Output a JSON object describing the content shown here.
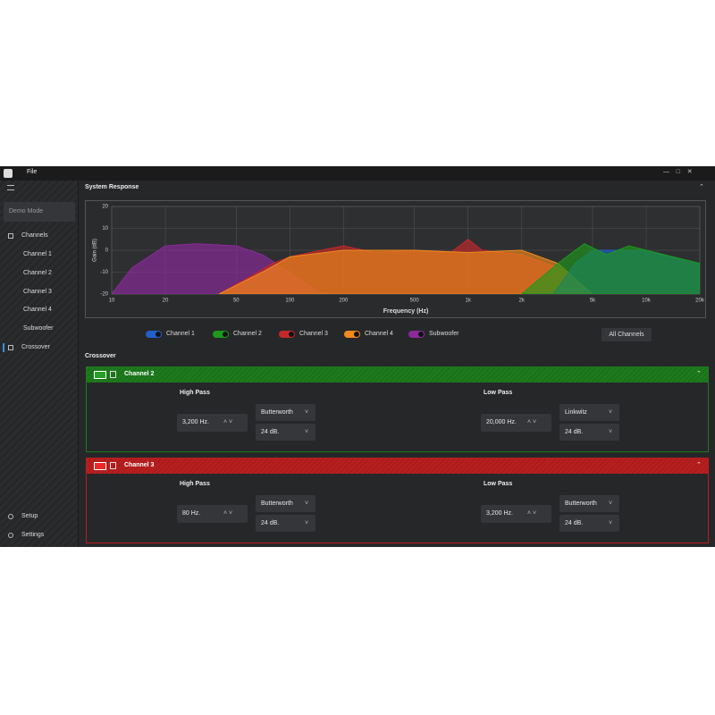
{
  "menu": [
    "File"
  ],
  "sidebar": {
    "mode": "Demo Mode",
    "nav": [
      "Channels",
      "Channel 1",
      "Channel 2",
      "Channel 3",
      "Channel 4",
      "Subwoofer",
      "Crossover"
    ],
    "bottom": [
      "Setup",
      "Settings"
    ]
  },
  "response": {
    "title": "System Response",
    "all_button": "All Channels"
  },
  "chart_data": {
    "type": "area",
    "xlabel": "Frequency (Hz)",
    "ylabel": "Gain (dB)",
    "xscale": "log",
    "grid": true,
    "xlim": [
      10,
      20000
    ],
    "ylim": [
      -20,
      20
    ],
    "xticks": [
      10,
      20,
      50,
      100,
      200,
      500,
      {
        "value": 1000,
        "label": "1k"
      },
      {
        "value": 2000,
        "label": "2k"
      },
      {
        "value": 5000,
        "label": "5k"
      },
      {
        "value": 10000,
        "label": "10k"
      },
      {
        "value": 20000,
        "label": "20k"
      }
    ],
    "yticks": [
      20,
      10,
      0,
      -10,
      -20
    ],
    "series": [
      {
        "name": "Channel 1",
        "color": "#2060c8",
        "x": [
          3000,
          4000,
          5000,
          7000,
          10000,
          12000,
          20000
        ],
        "values": [
          -20,
          -6,
          0,
          0,
          0,
          -2,
          -6
        ]
      },
      {
        "name": "Channel 2",
        "color": "#1c9a1c",
        "x": [
          2000,
          3200,
          4000,
          4500,
          6000,
          8000,
          10000,
          20000
        ],
        "values": [
          -20,
          -6,
          0,
          3,
          -2,
          2,
          0,
          -6
        ]
      },
      {
        "name": "Channel 3",
        "color": "#c4282a",
        "x": [
          40,
          60,
          80,
          100,
          150,
          200,
          300,
          500,
          800,
          1000,
          1200,
          2000,
          3200,
          5000
        ],
        "values": [
          -20,
          -12,
          -6,
          -3,
          0,
          2,
          -1,
          0,
          -1,
          5,
          0,
          -2,
          -8,
          -20
        ]
      },
      {
        "name": "Channel 4",
        "color": "#f08a1c",
        "x": [
          40,
          70,
          100,
          200,
          500,
          1000,
          2000,
          3200,
          5000
        ],
        "values": [
          -20,
          -10,
          -3,
          0,
          0,
          -1,
          0,
          -6,
          -20
        ]
      },
      {
        "name": "Subwoofer",
        "color": "#8c2a9c",
        "x": [
          10,
          13,
          20,
          30,
          50,
          70,
          100,
          150
        ],
        "values": [
          -20,
          -8,
          2,
          3,
          2,
          -2,
          -10,
          -20
        ]
      }
    ]
  },
  "crossover": {
    "title": "Crossover",
    "panels": [
      {
        "name": "Channel 2",
        "color": "#1d7a1d",
        "high_pass": {
          "label": "High Pass",
          "frequency": "3,200 Hz.",
          "filter": "Butterworth",
          "slope": "24 dB."
        },
        "low_pass": {
          "label": "Low Pass",
          "frequency": "20,000 Hz.",
          "filter": "Linkwitz",
          "slope": "24 dB."
        }
      },
      {
        "name": "Channel 3",
        "color": "#b81e1e",
        "high_pass": {
          "label": "High Pass",
          "frequency": "80 Hz.",
          "filter": "Butterworth",
          "slope": "24 dB."
        },
        "low_pass": {
          "label": "Low Pass",
          "frequency": "3,200 Hz.",
          "filter": "Butterworth",
          "slope": "24 dB."
        }
      }
    ]
  }
}
